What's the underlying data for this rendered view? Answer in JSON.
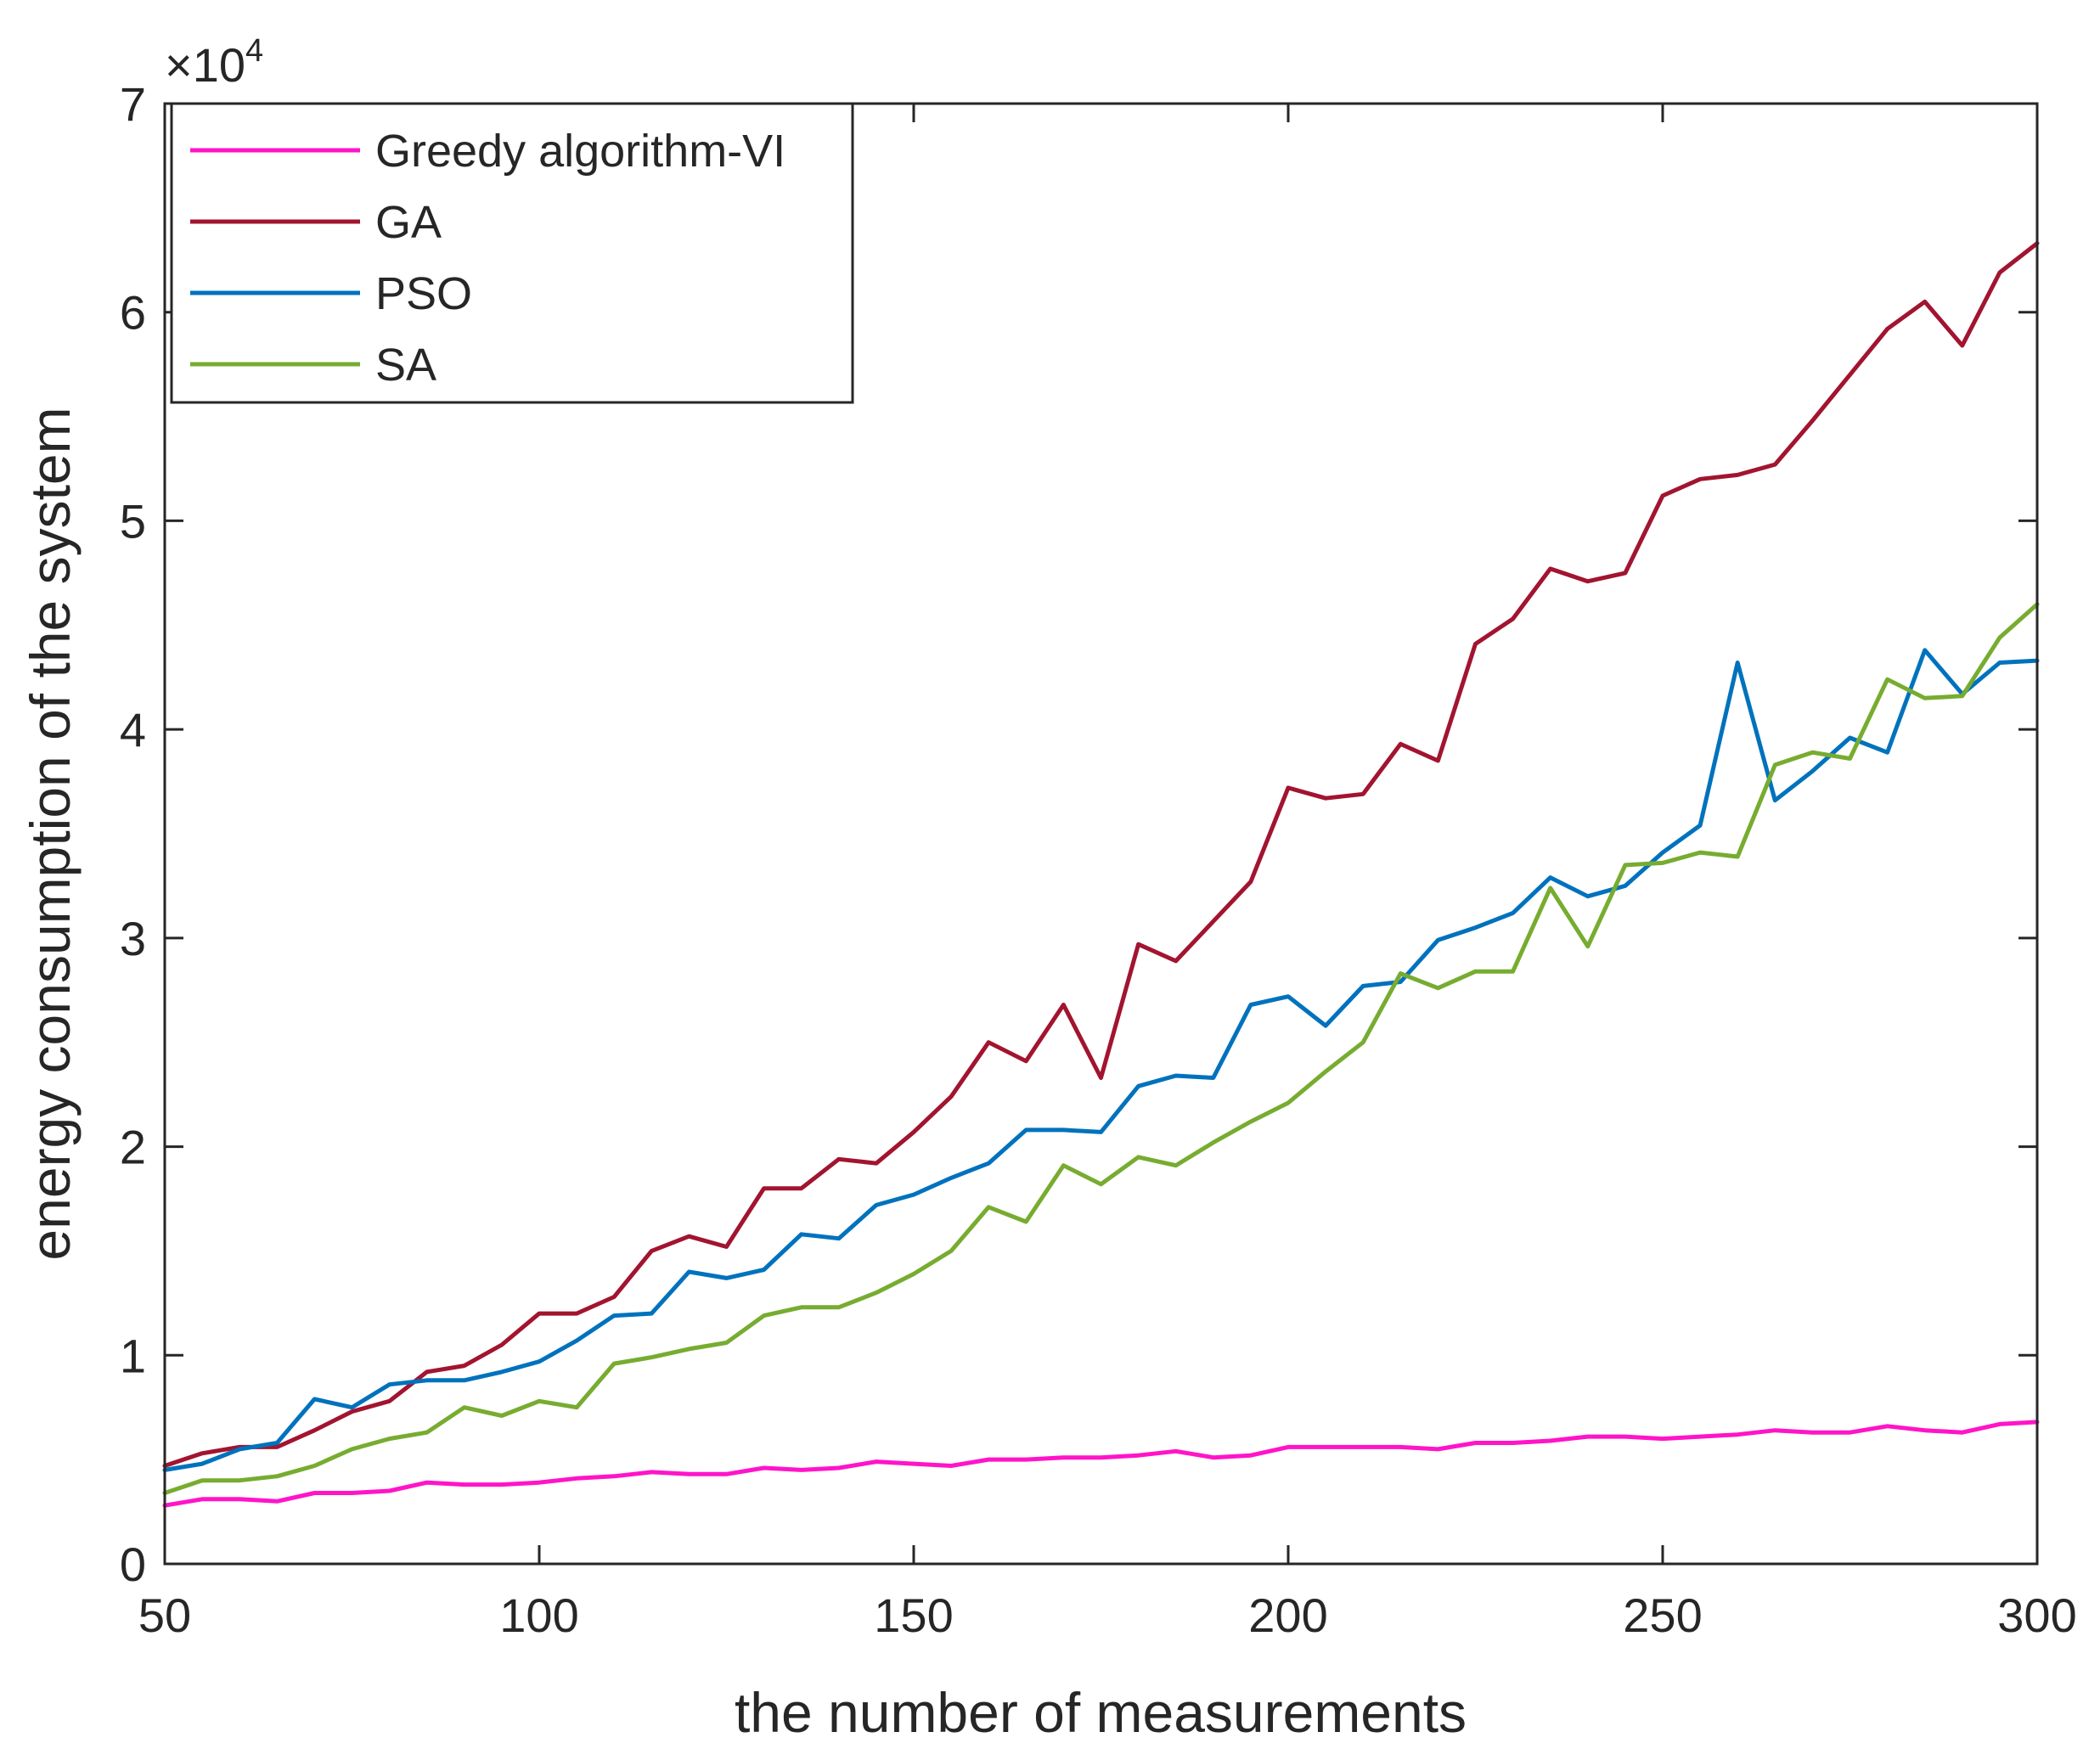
{
  "chart_data": {
    "type": "line",
    "title": "",
    "xlabel": "the number of measurements",
    "ylabel": "energy consumption of the system",
    "y_exponent_label": "×10",
    "y_exponent_power": "4",
    "xlim": [
      50,
      300
    ],
    "ylim": [
      0,
      7
    ],
    "x_ticks": [
      50,
      100,
      150,
      200,
      250,
      300
    ],
    "x_tick_labels": [
      "50",
      "100",
      "150",
      "200",
      "250",
      "300"
    ],
    "y_ticks": [
      0,
      1,
      2,
      3,
      4,
      5,
      6,
      7
    ],
    "y_tick_labels": [
      "0",
      "1",
      "2",
      "3",
      "4",
      "5",
      "6",
      "7"
    ],
    "legend_position": "top-left",
    "grid": false,
    "x": [
      50,
      55,
      60,
      65,
      70,
      75,
      80,
      85,
      90,
      95,
      100,
      105,
      110,
      115,
      120,
      125,
      130,
      135,
      140,
      145,
      150,
      155,
      160,
      165,
      170,
      175,
      180,
      185,
      190,
      195,
      200,
      205,
      210,
      215,
      220,
      225,
      230,
      235,
      240,
      245,
      250,
      255,
      260,
      265,
      270,
      275,
      280,
      285,
      290,
      295,
      300
    ],
    "series": [
      {
        "name": "Greedy algorithm-VI",
        "color": "#ff14c8",
        "values": [
          0.28,
          0.31,
          0.31,
          0.3,
          0.34,
          0.34,
          0.35,
          0.39,
          0.38,
          0.38,
          0.39,
          0.41,
          0.42,
          0.44,
          0.43,
          0.43,
          0.46,
          0.45,
          0.46,
          0.49,
          0.48,
          0.47,
          0.5,
          0.5,
          0.51,
          0.51,
          0.52,
          0.54,
          0.51,
          0.52,
          0.56,
          0.56,
          0.56,
          0.56,
          0.55,
          0.58,
          0.58,
          0.59,
          0.61,
          0.61,
          0.6,
          0.61,
          0.62,
          0.64,
          0.63,
          0.63,
          0.66,
          0.64,
          0.63,
          0.67,
          0.68
        ]
      },
      {
        "name": "GA",
        "color": "#a2142f",
        "values": [
          0.47,
          0.53,
          0.56,
          0.56,
          0.64,
          0.73,
          0.78,
          0.92,
          0.95,
          1.05,
          1.2,
          1.2,
          1.28,
          1.5,
          1.57,
          1.52,
          1.8,
          1.8,
          1.94,
          1.92,
          2.07,
          2.24,
          2.5,
          2.41,
          2.68,
          2.33,
          2.97,
          2.89,
          3.08,
          3.27,
          3.72,
          3.67,
          3.69,
          3.93,
          3.85,
          4.41,
          4.53,
          4.77,
          4.71,
          4.75,
          5.12,
          5.2,
          5.22,
          5.27,
          5.48,
          5.7,
          5.92,
          6.05,
          5.84,
          6.19,
          6.33
        ]
      },
      {
        "name": "PSO",
        "color": "#0072bd",
        "values": [
          0.45,
          0.48,
          0.55,
          0.58,
          0.79,
          0.75,
          0.86,
          0.88,
          0.88,
          0.92,
          0.97,
          1.07,
          1.19,
          1.2,
          1.4,
          1.37,
          1.41,
          1.58,
          1.56,
          1.72,
          1.77,
          1.85,
          1.92,
          2.08,
          2.08,
          2.07,
          2.29,
          2.34,
          2.33,
          2.68,
          2.72,
          2.58,
          2.77,
          2.79,
          2.99,
          3.05,
          3.12,
          3.29,
          3.2,
          3.25,
          3.41,
          3.54,
          4.32,
          3.66,
          3.8,
          3.96,
          3.89,
          4.38,
          4.17,
          4.32,
          4.33
        ]
      },
      {
        "name": "SA",
        "color": "#77ac30",
        "values": [
          0.34,
          0.4,
          0.4,
          0.42,
          0.47,
          0.55,
          0.6,
          0.63,
          0.75,
          0.71,
          0.78,
          0.75,
          0.96,
          0.99,
          1.03,
          1.06,
          1.19,
          1.23,
          1.23,
          1.3,
          1.39,
          1.5,
          1.71,
          1.64,
          1.91,
          1.82,
          1.95,
          1.91,
          2.02,
          2.12,
          2.21,
          2.36,
          2.5,
          2.83,
          2.76,
          2.84,
          2.84,
          3.24,
          2.96,
          3.35,
          3.36,
          3.41,
          3.39,
          3.83,
          3.89,
          3.86,
          4.24,
          4.15,
          4.16,
          4.44,
          4.6
        ]
      }
    ]
  }
}
